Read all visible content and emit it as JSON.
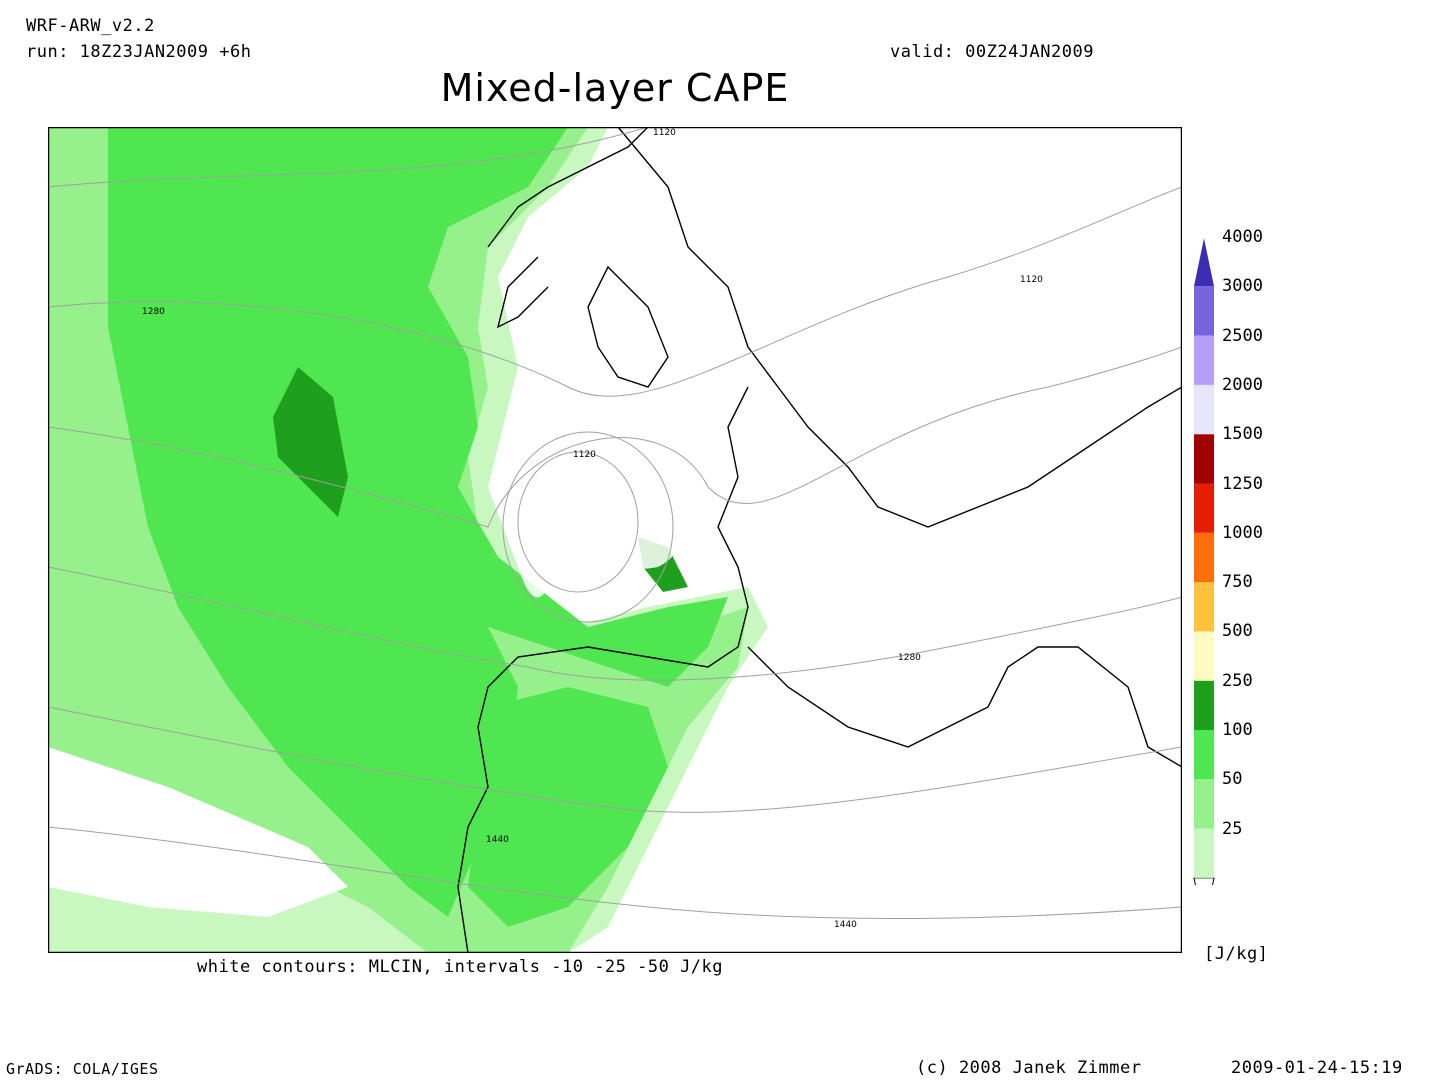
{
  "header": {
    "model": "WRF-ARW_v2.2",
    "run": "run: 18Z23JAN2009 +6h",
    "valid": "valid: 00Z24JAN2009",
    "title": "Mixed-layer CAPE"
  },
  "note": "white contours: MLCIN, intervals -10 -25 -50 J/kg",
  "footer": {
    "grads": "GrADS: COLA/IGES",
    "copyright": "(c) 2008 Janek Zimmer",
    "timestamp": "2009-01-24-15:19"
  },
  "colorbar": {
    "unit": "[J/kg]",
    "levels": [
      "25",
      "50",
      "100",
      "250",
      "500",
      "750",
      "1000",
      "1250",
      "1500",
      "2000",
      "2500",
      "3000",
      "4000"
    ],
    "colors": [
      "#c8f8c0",
      "#96f08c",
      "#50e650",
      "#1ea01e",
      "#fffac0",
      "#ffc23c",
      "#ff6e0a",
      "#e61e00",
      "#a00000",
      "#e6e6fa",
      "#b4a0fa",
      "#7864dc",
      "#3c2db4"
    ]
  },
  "contour_labels": {
    "geopotential": [
      "1120",
      "1120",
      "1120",
      "1280",
      "1280",
      "1440",
      "1440"
    ]
  }
}
